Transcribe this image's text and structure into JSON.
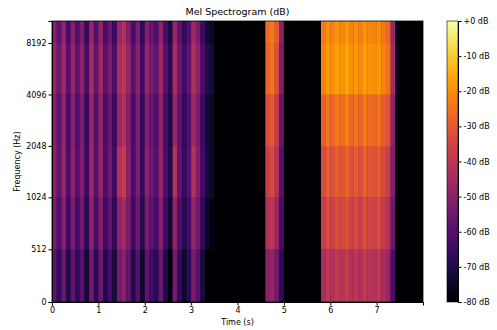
{
  "chart_data": {
    "type": "heatmap",
    "title": "Mel Spectrogram (dB)",
    "x_label": "Time (s)",
    "y_label": "Frequency (Hz)",
    "xlim": [
      0,
      8
    ],
    "xticks": [
      0,
      1,
      2,
      3,
      4,
      5,
      6,
      7
    ],
    "ylim": [
      0,
      11025
    ],
    "yticks": [
      0,
      512,
      1024,
      2048,
      4096,
      8192
    ],
    "log": "y",
    "color": "inferno",
    "x_edges": [
      0,
      0.1,
      0.2,
      0.3,
      0.4,
      0.5,
      0.6,
      0.7,
      0.8,
      0.9,
      1.0,
      1.1,
      1.2,
      1.3,
      1.4,
      1.5,
      1.6,
      1.7,
      1.8,
      1.9,
      2.0,
      2.1,
      2.2,
      2.3,
      2.4,
      2.5,
      2.6,
      2.7,
      2.8,
      2.9,
      3.0,
      3.1,
      3.2,
      3.3,
      3.4,
      3.5,
      3.6,
      3.7,
      3.8,
      3.9,
      4.0,
      4.1,
      4.2,
      4.3,
      4.4,
      4.5,
      4.6,
      4.7,
      4.8,
      4.9,
      5.0,
      5.1,
      5.2,
      5.3,
      5.4,
      5.5,
      5.6,
      5.7,
      5.8,
      5.9,
      6.0,
      6.1,
      6.2,
      6.3,
      6.4,
      6.5,
      6.6,
      6.7,
      6.8,
      6.9,
      7.0,
      7.1,
      7.2,
      7.3,
      7.4,
      7.5,
      7.6,
      7.7,
      7.8,
      7.9,
      8.0
    ],
    "y_edges": [
      0,
      512,
      1024,
      2048,
      4096,
      8192,
      11025
    ],
    "cells": [
      [
        -58,
        -66,
        -56,
        -70,
        -58,
        -68,
        -60,
        -73,
        -55,
        -68,
        -56,
        -70,
        -63,
        -72,
        -54,
        -50,
        -58,
        -70,
        -60,
        -74,
        -58,
        -64,
        -68,
        -56,
        -70,
        -78,
        -54,
        -66,
        -74,
        -68,
        -53,
        -60,
        -72,
        -80,
        -80,
        -80,
        -80,
        -80,
        -80,
        -80,
        -80,
        -80,
        -80,
        -80,
        -80,
        -80,
        -50,
        -48,
        -55,
        -68,
        -80,
        -80,
        -80,
        -80,
        -80,
        -80,
        -80,
        -80,
        -44,
        -40,
        -42,
        -39,
        -41,
        -38,
        -42,
        -40,
        -43,
        -39,
        -41,
        -42,
        -40,
        -44,
        -47,
        -62,
        -80,
        -80,
        -80,
        -80,
        -80,
        -80
      ],
      [
        -53,
        -61,
        -51,
        -65,
        -53,
        -63,
        -55,
        -68,
        -50,
        -63,
        -51,
        -65,
        -58,
        -67,
        -49,
        -45,
        -53,
        -65,
        -55,
        -69,
        -53,
        -59,
        -63,
        -51,
        -65,
        -73,
        -49,
        -61,
        -69,
        -63,
        -48,
        -55,
        -67,
        -75,
        -77,
        -80,
        -80,
        -80,
        -80,
        -80,
        -80,
        -80,
        -80,
        -80,
        -80,
        -80,
        -42,
        -40,
        -47,
        -63,
        -80,
        -80,
        -80,
        -80,
        -80,
        -80,
        -80,
        -80,
        -38,
        -34,
        -36,
        -33,
        -35,
        -32,
        -36,
        -34,
        -37,
        -33,
        -35,
        -36,
        -34,
        -38,
        -41,
        -56,
        -80,
        -80,
        -80,
        -80,
        -80,
        -80
      ],
      [
        -50,
        -58,
        -48,
        -62,
        -50,
        -60,
        -52,
        -65,
        -47,
        -60,
        -48,
        -62,
        -55,
        -64,
        -42,
        -38,
        -50,
        -62,
        -52,
        -66,
        -50,
        -56,
        -60,
        -48,
        -62,
        -70,
        -42,
        -58,
        -66,
        -60,
        -42,
        -52,
        -64,
        -72,
        -74,
        -80,
        -80,
        -80,
        -80,
        -80,
        -80,
        -80,
        -80,
        -80,
        -80,
        -80,
        -37,
        -34,
        -42,
        -60,
        -80,
        -80,
        -80,
        -80,
        -80,
        -80,
        -80,
        -80,
        -34,
        -30,
        -32,
        -29,
        -31,
        -28,
        -32,
        -30,
        -33,
        -29,
        -31,
        -32,
        -30,
        -34,
        -37,
        -52,
        -79,
        -80,
        -80,
        -80,
        -80,
        -80
      ],
      [
        -51,
        -59,
        -49,
        -63,
        -51,
        -61,
        -53,
        -66,
        -48,
        -61,
        -49,
        -63,
        -56,
        -65,
        -47,
        -43,
        -51,
        -63,
        -53,
        -67,
        -51,
        -57,
        -61,
        -49,
        -63,
        -71,
        -47,
        -59,
        -67,
        -61,
        -46,
        -53,
        -65,
        -73,
        -75,
        -80,
        -80,
        -80,
        -80,
        -80,
        -80,
        -80,
        -80,
        -80,
        -80,
        -80,
        -33,
        -30,
        -38,
        -57,
        -80,
        -80,
        -80,
        -80,
        -80,
        -80,
        -80,
        -80,
        -29,
        -25,
        -27,
        -24,
        -26,
        -23,
        -27,
        -25,
        -28,
        -24,
        -26,
        -27,
        -25,
        -29,
        -32,
        -50,
        -78,
        -80,
        -80,
        -80,
        -80,
        -80
      ],
      [
        -48,
        -56,
        -46,
        -60,
        -48,
        -58,
        -50,
        -63,
        -45,
        -58,
        -46,
        -60,
        -53,
        -62,
        -44,
        -40,
        -48,
        -60,
        -50,
        -64,
        -48,
        -54,
        -58,
        -46,
        -60,
        -68,
        -44,
        -56,
        -64,
        -58,
        -43,
        -50,
        -62,
        -70,
        -72,
        -80,
        -80,
        -80,
        -80,
        -80,
        -80,
        -80,
        -80,
        -80,
        -80,
        -80,
        -28,
        -25,
        -33,
        -52,
        -80,
        -80,
        -80,
        -80,
        -80,
        -80,
        -80,
        -80,
        -22,
        -18,
        -20,
        -17,
        -19,
        -16,
        -20,
        -18,
        -21,
        -17,
        -19,
        -20,
        -18,
        -22,
        -25,
        -45,
        -76,
        -80,
        -80,
        -80,
        -80,
        -80
      ],
      [
        -51,
        -59,
        -49,
        -63,
        -51,
        -61,
        -53,
        -66,
        -48,
        -61,
        -49,
        -63,
        -56,
        -65,
        -47,
        -43,
        -51,
        -63,
        -53,
        -67,
        -51,
        -57,
        -61,
        -49,
        -63,
        -71,
        -47,
        -59,
        -67,
        -61,
        -46,
        -53,
        -65,
        -73,
        -75,
        -80,
        -80,
        -80,
        -80,
        -80,
        -80,
        -80,
        -80,
        -80,
        -80,
        -80,
        -26,
        -24,
        -30,
        -50,
        -80,
        -80,
        -80,
        -80,
        -80,
        -80,
        -80,
        -80,
        -24,
        -20,
        -22,
        -19,
        -21,
        -18,
        -22,
        -20,
        -23,
        -19,
        -21,
        -22,
        -20,
        -24,
        -27,
        -47,
        -77,
        -80,
        -80,
        -80,
        -80,
        -80
      ]
    ],
    "colorbar": {
      "range": [
        -80,
        0
      ],
      "ticks": [
        {
          "value": 0,
          "label": "+0 dB"
        },
        {
          "value": -10,
          "label": "-10 dB"
        },
        {
          "value": -20,
          "label": "-20 dB"
        },
        {
          "value": -30,
          "label": "-30 dB"
        },
        {
          "value": -40,
          "label": "-40 dB"
        },
        {
          "value": -50,
          "label": "-50 dB"
        },
        {
          "value": -60,
          "label": "-60 dB"
        },
        {
          "value": -70,
          "label": "-70 dB"
        },
        {
          "value": -80,
          "label": "-80 dB"
        }
      ]
    }
  }
}
